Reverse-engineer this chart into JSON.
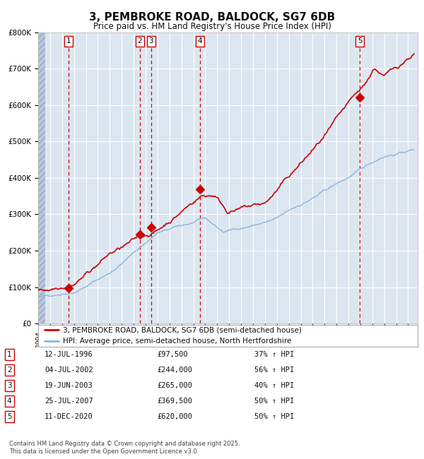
{
  "title": "3, PEMBROKE ROAD, BALDOCK, SG7 6DB",
  "subtitle": "Price paid vs. HM Land Registry's House Price Index (HPI)",
  "title_fontsize": 11,
  "subtitle_fontsize": 9,
  "background_color": "#ffffff",
  "plot_bg_color": "#dce6f1",
  "grid_color": "#ffffff",
  "ylabel_ticks": [
    "£0",
    "£100K",
    "£200K",
    "£300K",
    "£400K",
    "£500K",
    "£600K",
    "£700K",
    "£800K"
  ],
  "ylim": [
    0,
    800000
  ],
  "xlim_start": 1994.0,
  "xlim_end": 2025.8,
  "hpi_color": "#8ab4d8",
  "price_color": "#cc0000",
  "vline_color": "#cc0000",
  "legend_price_label": "3, PEMBROKE ROAD, BALDOCK, SG7 6DB (semi-detached house)",
  "legend_hpi_label": "HPI: Average price, semi-detached house, North Hertfordshire",
  "sales": [
    {
      "num": 1,
      "year": 1996.54,
      "price": 97500,
      "pct": "37%",
      "date": "12-JUL-1996"
    },
    {
      "num": 2,
      "year": 2002.51,
      "price": 244000,
      "pct": "56%",
      "date": "04-JUL-2002"
    },
    {
      "num": 3,
      "year": 2003.47,
      "price": 265000,
      "pct": "40%",
      "date": "19-JUN-2003"
    },
    {
      "num": 4,
      "year": 2007.56,
      "price": 369500,
      "pct": "50%",
      "date": "25-JUL-2007"
    },
    {
      "num": 5,
      "year": 2020.95,
      "price": 620000,
      "pct": "50%",
      "date": "11-DEC-2020"
    }
  ],
  "footer_line1": "Contains HM Land Registry data © Crown copyright and database right 2025.",
  "footer_line2": "This data is licensed under the Open Government Licence v3.0."
}
